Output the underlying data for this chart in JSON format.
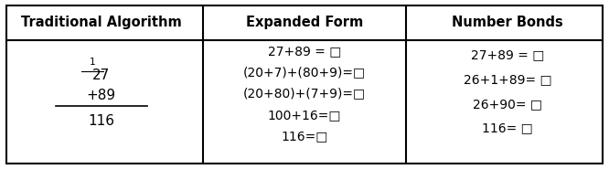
{
  "headers": [
    "Traditional Algorithm",
    "Expanded Form",
    "Number Bonds"
  ],
  "col1_lines": [
    "1",
    "27",
    "+89",
    "116"
  ],
  "col2_lines": [
    "27+89 = □",
    "(20+7)+(80+9)=□",
    "(20+80)+(7+9)=□",
    "100+16=□",
    "116=□"
  ],
  "col3_lines": [
    "27+89 = □",
    "26+1+89= □",
    "26+90= □",
    "116= □"
  ],
  "bg_color": "#ffffff",
  "border_color": "#000000",
  "header_fontsize": 10.5,
  "body_fontsize": 10,
  "col1_carry_fontsize": 7.5,
  "col_boundaries": [
    0.0,
    0.333,
    0.667,
    1.0
  ]
}
